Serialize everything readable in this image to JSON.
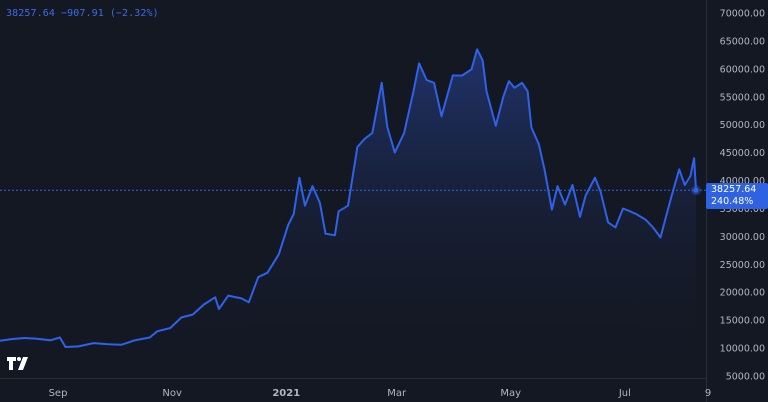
{
  "legend": {
    "price": "38257.64",
    "change": "−907.91",
    "change_pct": "(−2.32%)"
  },
  "last": {
    "price": "38257.64",
    "percent": "240.48%",
    "value": 38257.64
  },
  "colors": {
    "line": "#2f62e8",
    "background": "#141823",
    "badge": "#2e62e0",
    "axis_text": "#b2b5be"
  },
  "logo_icon": "tradingview-logo-icon",
  "chart_data": {
    "type": "area",
    "title": "",
    "xlabel": "",
    "ylabel": "",
    "ylim": [
      5000,
      70000
    ],
    "grid": false,
    "y_ticks": [
      70000,
      65000,
      60000,
      55000,
      50000,
      45000,
      40000,
      35000,
      30000,
      25000,
      20000,
      15000,
      10000,
      5000
    ],
    "y_tick_labels": [
      "70000.00",
      "65000.00",
      "60000.00",
      "55000.00",
      "50000.00",
      "45000.00",
      "40000.00",
      "35000.00",
      "30000.00",
      "25000.00",
      "20000.00",
      "15000.00",
      "10000.00",
      "5000.00"
    ],
    "x_ticks": [
      {
        "label": "Sep",
        "date": "2020-09-01",
        "bold": false
      },
      {
        "label": "Nov",
        "date": "2020-11-01",
        "bold": false
      },
      {
        "label": "2021",
        "date": "2021-01-01",
        "bold": true
      },
      {
        "label": "Mar",
        "date": "2021-03-01",
        "bold": false
      },
      {
        "label": "May",
        "date": "2021-05-01",
        "bold": false
      },
      {
        "label": "Jul",
        "date": "2021-07-01",
        "bold": false
      },
      {
        "label": "9",
        "date": "2021-08-09",
        "bold": false
      }
    ],
    "series": [
      {
        "points": [
          [
            "2020-08-01",
            11300
          ],
          [
            "2020-08-07",
            11600
          ],
          [
            "2020-08-14",
            11800
          ],
          [
            "2020-08-20",
            11700
          ],
          [
            "2020-08-28",
            11400
          ],
          [
            "2020-09-02",
            11900
          ],
          [
            "2020-09-05",
            10200
          ],
          [
            "2020-09-12",
            10300
          ],
          [
            "2020-09-20",
            10900
          ],
          [
            "2020-09-28",
            10700
          ],
          [
            "2020-10-05",
            10600
          ],
          [
            "2020-10-12",
            11400
          ],
          [
            "2020-10-20",
            11900
          ],
          [
            "2020-10-24",
            13000
          ],
          [
            "2020-10-31",
            13600
          ],
          [
            "2020-11-06",
            15500
          ],
          [
            "2020-11-12",
            16000
          ],
          [
            "2020-11-18",
            17800
          ],
          [
            "2020-11-24",
            19100
          ],
          [
            "2020-11-26",
            17000
          ],
          [
            "2020-12-01",
            19400
          ],
          [
            "2020-12-08",
            18900
          ],
          [
            "2020-12-12",
            18200
          ],
          [
            "2020-12-17",
            22700
          ],
          [
            "2020-12-22",
            23500
          ],
          [
            "2020-12-28",
            26800
          ],
          [
            "2021-01-02",
            32000
          ],
          [
            "2021-01-05",
            34000
          ],
          [
            "2021-01-08",
            40500
          ],
          [
            "2021-01-11",
            35500
          ],
          [
            "2021-01-15",
            39000
          ],
          [
            "2021-01-19",
            36000
          ],
          [
            "2021-01-22",
            30500
          ],
          [
            "2021-01-27",
            30200
          ],
          [
            "2021-01-29",
            34500
          ],
          [
            "2021-02-03",
            35500
          ],
          [
            "2021-02-08",
            46000
          ],
          [
            "2021-02-12",
            47500
          ],
          [
            "2021-02-16",
            48500
          ],
          [
            "2021-02-21",
            57500
          ],
          [
            "2021-02-24",
            49600
          ],
          [
            "2021-02-28",
            45000
          ],
          [
            "2021-03-05",
            48500
          ],
          [
            "2021-03-10",
            56000
          ],
          [
            "2021-03-13",
            61000
          ],
          [
            "2021-03-17",
            58000
          ],
          [
            "2021-03-21",
            57500
          ],
          [
            "2021-03-25",
            51500
          ],
          [
            "2021-03-31",
            58800
          ],
          [
            "2021-04-05",
            58800
          ],
          [
            "2021-04-10",
            59900
          ],
          [
            "2021-04-13",
            63500
          ],
          [
            "2021-04-16",
            61500
          ],
          [
            "2021-04-18",
            56000
          ],
          [
            "2021-04-23",
            49800
          ],
          [
            "2021-04-27",
            55000
          ],
          [
            "2021-04-30",
            57800
          ],
          [
            "2021-05-03",
            56600
          ],
          [
            "2021-05-07",
            57500
          ],
          [
            "2021-05-10",
            56000
          ],
          [
            "2021-05-12",
            49500
          ],
          [
            "2021-05-16",
            46500
          ],
          [
            "2021-05-19",
            42000
          ],
          [
            "2021-05-23",
            34800
          ],
          [
            "2021-05-26",
            39000
          ],
          [
            "2021-05-30",
            35700
          ],
          [
            "2021-06-03",
            39200
          ],
          [
            "2021-06-07",
            33500
          ],
          [
            "2021-06-10",
            37300
          ],
          [
            "2021-06-15",
            40500
          ],
          [
            "2021-06-18",
            38000
          ],
          [
            "2021-06-22",
            32500
          ],
          [
            "2021-06-26",
            31600
          ],
          [
            "2021-06-30",
            35000
          ],
          [
            "2021-07-03",
            34600
          ],
          [
            "2021-07-07",
            34000
          ],
          [
            "2021-07-12",
            33000
          ],
          [
            "2021-07-16",
            31600
          ],
          [
            "2021-07-20",
            29800
          ],
          [
            "2021-07-23",
            33600
          ],
          [
            "2021-07-26",
            37300
          ],
          [
            "2021-07-30",
            42000
          ],
          [
            "2021-08-02",
            39200
          ],
          [
            "2021-08-05",
            40800
          ],
          [
            "2021-08-07",
            44000
          ],
          [
            "2021-08-08",
            38257.64
          ]
        ]
      }
    ]
  }
}
